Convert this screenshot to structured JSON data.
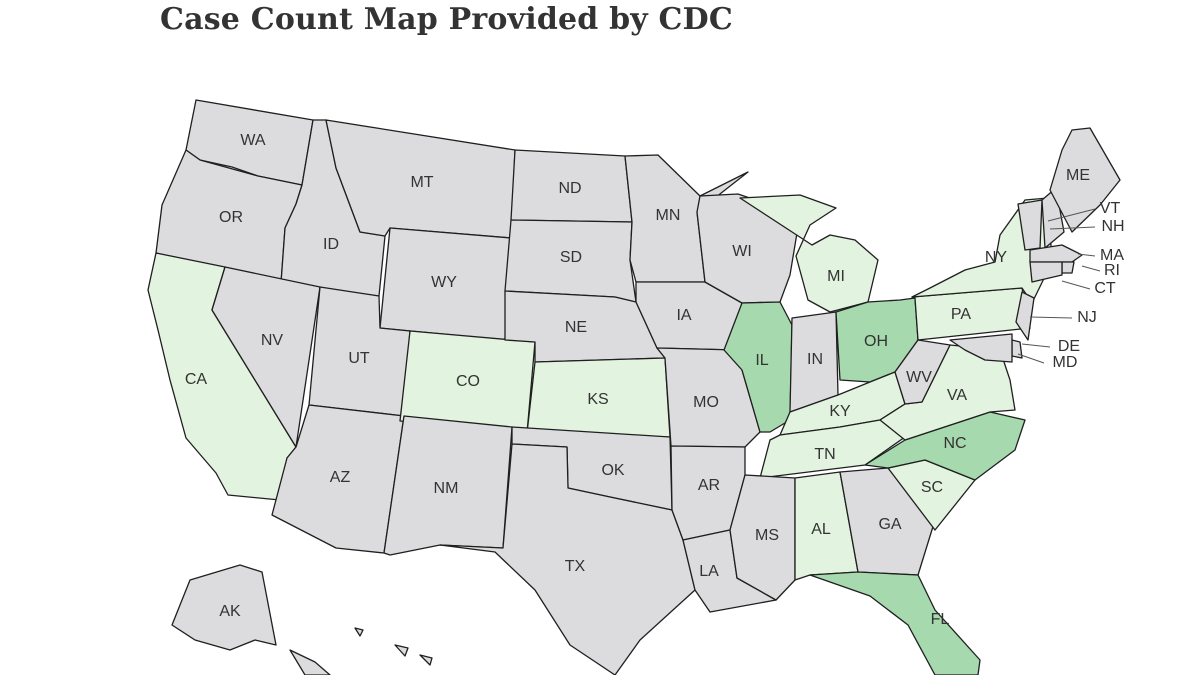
{
  "title": "Case Count Map Provided by CDC",
  "colors": {
    "no_cases": "#dcdcde",
    "low": "#e2f3df",
    "medium": "#a6d9ae",
    "border": "#1f1f1f",
    "label": "#333333"
  },
  "states": [
    {
      "code": "WA",
      "level": "no_cases"
    },
    {
      "code": "OR",
      "level": "no_cases"
    },
    {
      "code": "CA",
      "level": "low"
    },
    {
      "code": "ID",
      "level": "no_cases"
    },
    {
      "code": "NV",
      "level": "no_cases"
    },
    {
      "code": "MT",
      "level": "no_cases"
    },
    {
      "code": "WY",
      "level": "no_cases"
    },
    {
      "code": "UT",
      "level": "no_cases"
    },
    {
      "code": "AZ",
      "level": "no_cases"
    },
    {
      "code": "CO",
      "level": "low"
    },
    {
      "code": "NM",
      "level": "no_cases"
    },
    {
      "code": "ND",
      "level": "no_cases"
    },
    {
      "code": "SD",
      "level": "no_cases"
    },
    {
      "code": "NE",
      "level": "no_cases"
    },
    {
      "code": "KS",
      "level": "low"
    },
    {
      "code": "OK",
      "level": "no_cases"
    },
    {
      "code": "TX",
      "level": "no_cases"
    },
    {
      "code": "MN",
      "level": "no_cases"
    },
    {
      "code": "IA",
      "level": "no_cases"
    },
    {
      "code": "MO",
      "level": "no_cases"
    },
    {
      "code": "AR",
      "level": "no_cases"
    },
    {
      "code": "LA",
      "level": "no_cases"
    },
    {
      "code": "WI",
      "level": "no_cases"
    },
    {
      "code": "IL",
      "level": "medium"
    },
    {
      "code": "MI",
      "level": "low"
    },
    {
      "code": "IN",
      "level": "no_cases"
    },
    {
      "code": "OH",
      "level": "medium"
    },
    {
      "code": "KY",
      "level": "low"
    },
    {
      "code": "TN",
      "level": "low"
    },
    {
      "code": "MS",
      "level": "no_cases"
    },
    {
      "code": "AL",
      "level": "low"
    },
    {
      "code": "GA",
      "level": "no_cases"
    },
    {
      "code": "FL",
      "level": "medium"
    },
    {
      "code": "SC",
      "level": "low"
    },
    {
      "code": "NC",
      "level": "medium"
    },
    {
      "code": "VA",
      "level": "low"
    },
    {
      "code": "WV",
      "level": "no_cases"
    },
    {
      "code": "PA",
      "level": "low"
    },
    {
      "code": "NY",
      "level": "low"
    },
    {
      "code": "VT",
      "level": "no_cases"
    },
    {
      "code": "NH",
      "level": "no_cases"
    },
    {
      "code": "ME",
      "level": "no_cases"
    },
    {
      "code": "MA",
      "level": "no_cases"
    },
    {
      "code": "RI",
      "level": "no_cases"
    },
    {
      "code": "CT",
      "level": "no_cases"
    },
    {
      "code": "NJ",
      "level": "no_cases"
    },
    {
      "code": "DE",
      "level": "no_cases"
    },
    {
      "code": "MD",
      "level": "no_cases"
    },
    {
      "code": "AK",
      "level": "no_cases"
    },
    {
      "code": "HI",
      "level": "no_cases"
    }
  ]
}
